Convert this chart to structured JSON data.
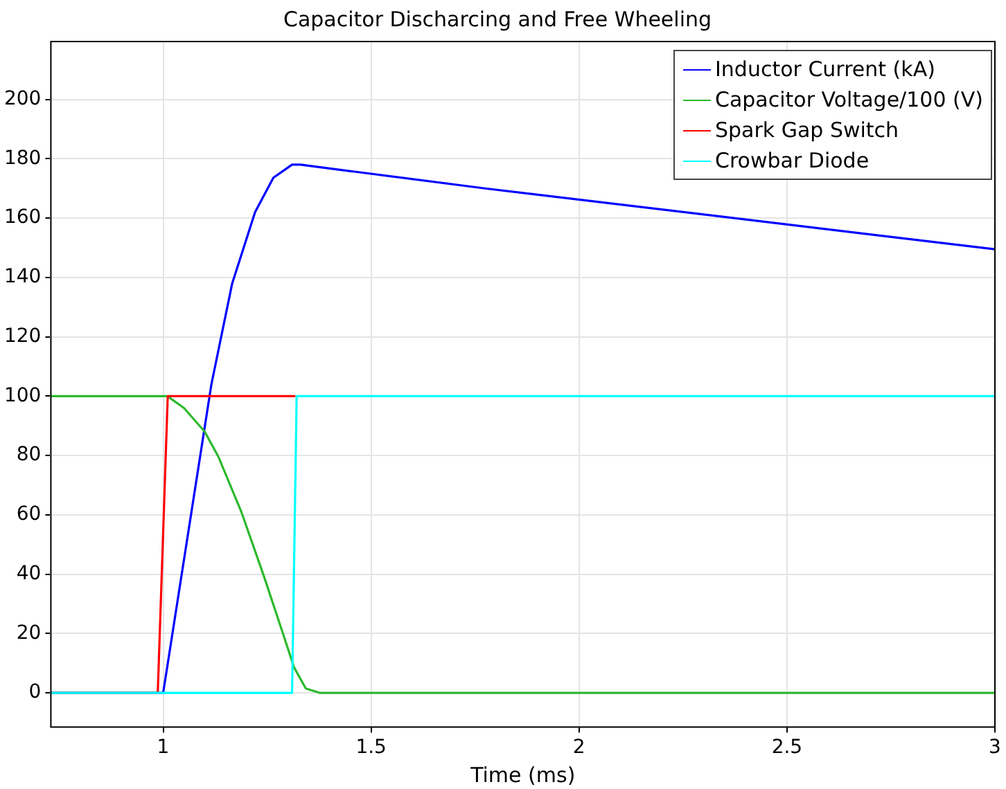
{
  "chart_data": {
    "type": "line",
    "title": "Capacitor Discharcing and Free Wheeling",
    "xlabel": "Time (ms)",
    "xlim": [
      0.73,
      3
    ],
    "xticks": [
      1,
      1.5,
      2,
      2.5,
      3
    ],
    "ylim": [
      -11.5,
      219.5
    ],
    "yticks": [
      0,
      20,
      40,
      60,
      80,
      100,
      120,
      140,
      160,
      180,
      200
    ],
    "grid": true,
    "legend": "top right",
    "marker": "none",
    "line_style": "solid",
    "series": [
      {
        "name": "Inductor Current (kA)",
        "color": "#0000ff",
        "x": [
          0.73,
          1.0,
          1.116,
          1.166,
          1.221,
          1.265,
          1.31,
          1.33,
          1.774,
          3
        ],
        "values": [
          0,
          0,
          104,
          138,
          162,
          173.6,
          178,
          178,
          170,
          149.5
        ]
      },
      {
        "name": "Capacitor Voltage/100 (V)",
        "color": "#2db82d",
        "x": [
          0.73,
          1.01,
          1.05,
          1.1,
          1.133,
          1.188,
          1.243,
          1.288,
          1.315,
          1.343,
          1.376,
          3
        ],
        "values": [
          100,
          100,
          96,
          88,
          79.5,
          61,
          39,
          20,
          8.5,
          1.5,
          0,
          0
        ]
      },
      {
        "name": "Spark Gap Switch",
        "color": "#ff0000",
        "x": [
          0.73,
          0.987,
          1.011,
          1.318
        ],
        "values": [
          0,
          0,
          100,
          100
        ]
      },
      {
        "name": "Crowbar Diode",
        "color": "#00ffff",
        "x": [
          0.73,
          1.31,
          1.321,
          3
        ],
        "values": [
          0,
          0,
          100,
          100
        ]
      }
    ]
  }
}
